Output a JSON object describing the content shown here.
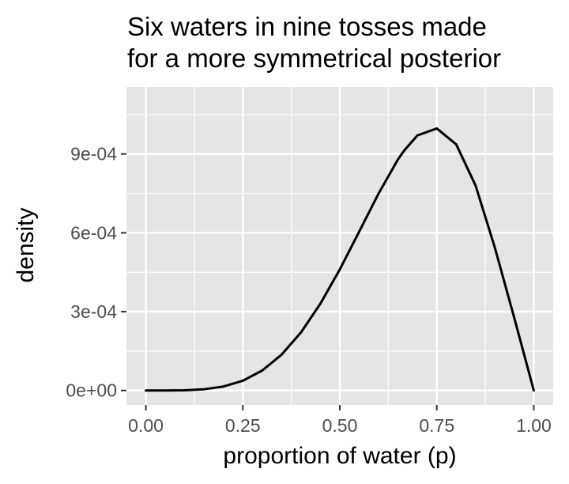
{
  "chart_data": {
    "type": "line",
    "title_lines": [
      "Six waters in nine tosses made",
      "for a more symmetrical posterior"
    ],
    "xlabel": "proportion of water (p)",
    "ylabel": "density",
    "xlim": [
      -0.05,
      1.05
    ],
    "ylim": [
      -5.5e-05,
      0.001155
    ],
    "x_ticks": [
      0.0,
      0.25,
      0.5,
      0.75,
      1.0
    ],
    "x_tick_labels": [
      "0.00",
      "0.25",
      "0.50",
      "0.75",
      "1.00"
    ],
    "y_ticks": [
      0,
      0.0003,
      0.0006,
      0.0009
    ],
    "y_tick_labels": [
      "0e+00",
      "3e-04",
      "6e-04",
      "9e-04"
    ],
    "x_minor_ticks": [
      0.125,
      0.375,
      0.625,
      0.875
    ],
    "y_minor_ticks": [
      0.00015,
      0.00045,
      0.00075,
      0.00105
    ],
    "grid": true,
    "legend": "none",
    "series": [
      {
        "x": [
          0.0,
          0.05,
          0.1,
          0.15,
          0.2,
          0.25,
          0.3,
          0.35,
          0.4,
          0.45,
          0.5,
          0.55,
          0.6,
          0.65,
          0.6667,
          0.7,
          0.75,
          0.8,
          0.85,
          0.9,
          0.95,
          1.0
        ],
        "y": [
          0.0,
          4e-08,
          8e-07,
          4.6e-06,
          1.51e-05,
          3.71e-05,
          7.59e-05,
          0.0001364,
          0.0002212,
          0.0003305,
          0.0004608,
          0.0006046,
          0.0007499,
          0.0008796,
          0.0009145,
          0.0009707,
          0.0009971,
          0.0009366,
          0.0007797,
          0.0005418,
          0.0002744,
          0.0
        ]
      }
    ],
    "colors": {
      "panel_background": "#e5e5e5",
      "grid": "#ffffff",
      "line": "#000000",
      "tick_label": "#4d4d4d",
      "tick_mark": "#333333"
    }
  }
}
